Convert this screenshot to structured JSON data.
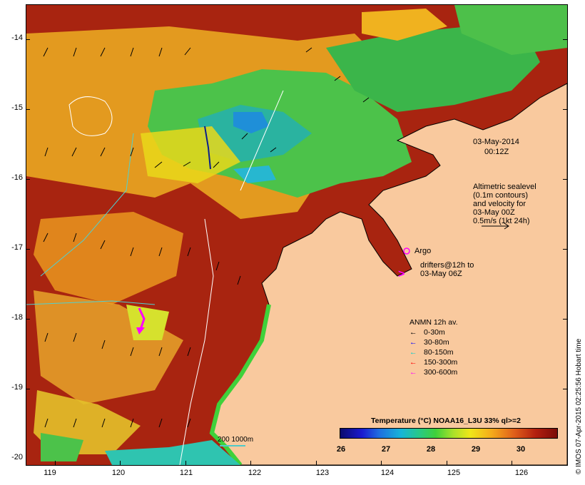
{
  "map": {
    "date": "03-May-2014",
    "time": "00:12Z",
    "altimetry_note": [
      "Altimetric sealevel",
      "(0.1m contours)",
      "and velocity for",
      "03-May 00Z",
      "0.5m/s (1kt 24h)"
    ],
    "argo_label": "Argo",
    "drifters_note": [
      "drifters@12h to",
      "03-May 06Z"
    ],
    "depth_scale_label": "200  1000m",
    "credit": "© IMOS 07-Apr-2015 02:25:56 Hobart time"
  },
  "axes": {
    "y_ticks": [
      "-14",
      "-15",
      "-16",
      "-17",
      "-18",
      "-19",
      "-20"
    ],
    "x_ticks": [
      "119",
      "120",
      "121",
      "122",
      "123",
      "124",
      "125",
      "126"
    ]
  },
  "legend": {
    "title": "ANMN 12h av.",
    "items": [
      {
        "label": "0-30m",
        "color": "#000000"
      },
      {
        "label": "30-80m",
        "color": "#0000ff"
      },
      {
        "label": "80-150m",
        "color": "#00cfcf"
      },
      {
        "label": "150-300m",
        "color": "#ff0000"
      },
      {
        "label": "300-600m",
        "color": "#ff00ff"
      }
    ]
  },
  "colorbar": {
    "title": "Temperature (°C) NOAA16_L3U 33% ql>=2",
    "ticks": [
      "26",
      "27",
      "28",
      "29",
      "30"
    ]
  },
  "colors": {
    "land": "#f9c99e",
    "warm": "#9a1a0a",
    "mid": "#e89a1c",
    "cool": "#3bc24a",
    "coldest": "#1f8fd8"
  }
}
